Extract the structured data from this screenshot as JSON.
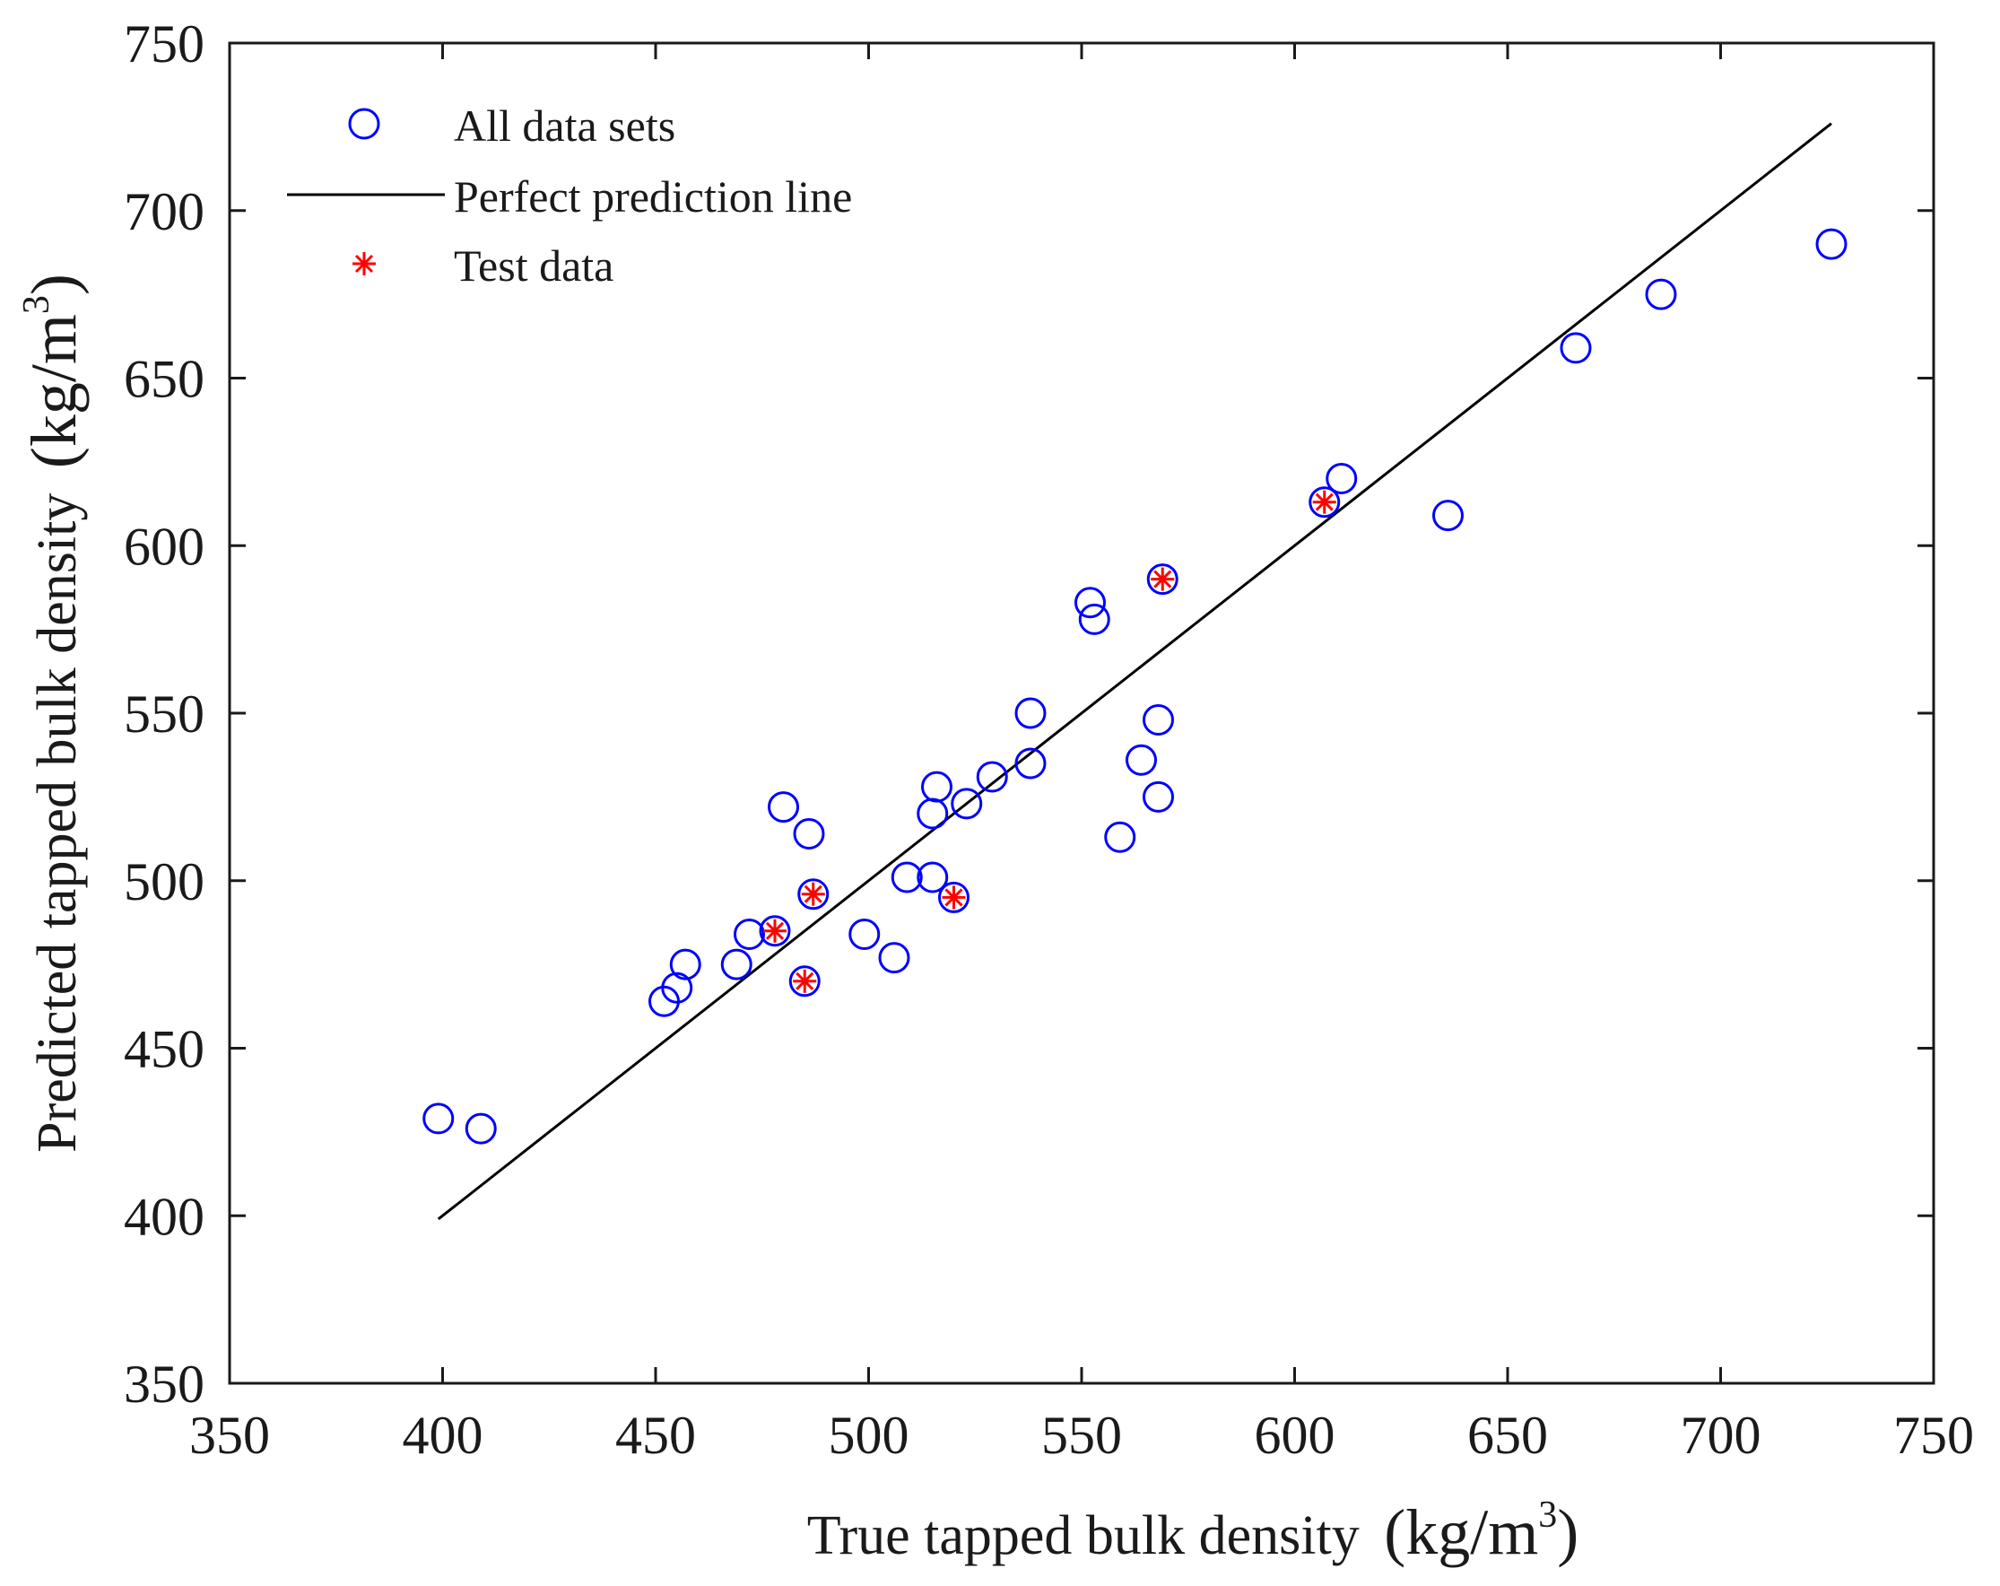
{
  "chart_data": {
    "type": "scatter",
    "xlabel": "True tapped bulk density",
    "ylabel": "Predicted tapped bulk density",
    "unit": {
      "open": "(kg/m",
      "exp": "3",
      "close": ")"
    },
    "xlim": [
      350,
      750
    ],
    "ylim": [
      350,
      750
    ],
    "xticks": [
      350,
      400,
      450,
      500,
      550,
      600,
      650,
      700,
      750
    ],
    "yticks": [
      350,
      400,
      450,
      500,
      550,
      600,
      650,
      700,
      750
    ],
    "grid": false,
    "legend_position": "top-left",
    "legend": [
      {
        "label": "All data sets",
        "marker": "circle",
        "color": "#0000ff"
      },
      {
        "label": "Perfect prediction line",
        "marker": "line",
        "color": "#000000"
      },
      {
        "label": "Test data",
        "marker": "asterisk",
        "color": "#ff0000"
      }
    ],
    "series": [
      {
        "name": "All data sets",
        "marker": "circle",
        "color": "#0000ff",
        "points": [
          [
            399,
            429
          ],
          [
            409,
            426
          ],
          [
            452,
            464
          ],
          [
            455,
            468
          ],
          [
            457,
            475
          ],
          [
            469,
            475
          ],
          [
            472,
            484
          ],
          [
            478,
            485
          ],
          [
            480,
            522
          ],
          [
            485,
            470
          ],
          [
            486,
            514
          ],
          [
            487,
            496
          ],
          [
            499,
            484
          ],
          [
            506,
            477
          ],
          [
            509,
            501
          ],
          [
            515,
            501
          ],
          [
            515,
            520
          ],
          [
            516,
            528
          ],
          [
            520,
            495
          ],
          [
            523,
            523
          ],
          [
            529,
            531
          ],
          [
            538,
            535
          ],
          [
            538,
            550
          ],
          [
            552,
            583
          ],
          [
            553,
            578
          ],
          [
            559,
            513
          ],
          [
            564,
            536
          ],
          [
            568,
            525
          ],
          [
            568,
            548
          ],
          [
            569,
            590
          ],
          [
            607,
            613
          ],
          [
            611,
            620
          ],
          [
            636,
            609
          ],
          [
            666,
            659
          ],
          [
            686,
            675
          ],
          [
            726,
            690
          ]
        ]
      },
      {
        "name": "Test data",
        "marker": "asterisk",
        "color": "#ff0000",
        "points": [
          [
            478,
            485
          ],
          [
            485,
            470
          ],
          [
            487,
            496
          ],
          [
            520,
            495
          ],
          [
            569,
            590
          ],
          [
            607,
            613
          ]
        ]
      },
      {
        "name": "Perfect prediction line",
        "marker": "line",
        "color": "#000000",
        "points": [
          [
            399,
            399
          ],
          [
            726,
            726
          ]
        ]
      }
    ]
  }
}
